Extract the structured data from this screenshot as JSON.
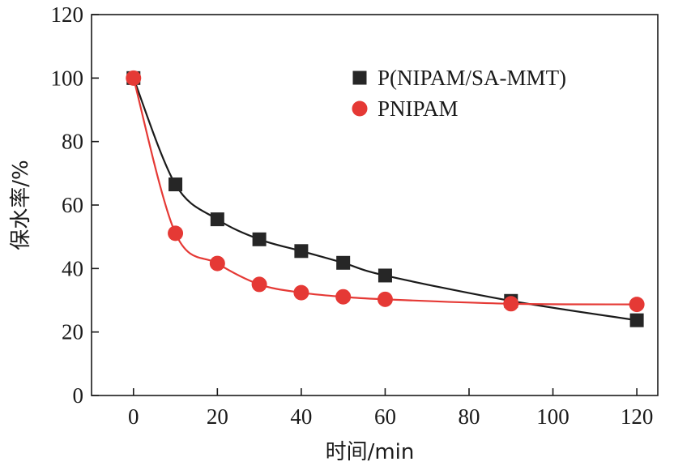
{
  "chart_data": {
    "type": "line",
    "title": "",
    "xlabel": "时间/min",
    "ylabel": "保水率/%",
    "xlim": [
      -10,
      125
    ],
    "ylim": [
      0,
      120
    ],
    "xticks": [
      0,
      20,
      40,
      60,
      80,
      100,
      120
    ],
    "yticks": [
      0,
      20,
      40,
      60,
      80,
      100,
      120
    ],
    "xtick_labels": [
      "0",
      "20",
      "40",
      "60",
      "80",
      "100",
      "120"
    ],
    "ytick_labels": [
      "0",
      "20",
      "40",
      "60",
      "80",
      "100",
      "120"
    ],
    "grid": false,
    "legend_position": "top-right",
    "series": [
      {
        "name": "P(NIPAM/SA-MMT)",
        "marker": "square",
        "marker_color": "#262626",
        "line_color": "#1a1a1a",
        "x": [
          0,
          10,
          20,
          30,
          40,
          50,
          60,
          90,
          120
        ],
        "y": [
          100,
          66.5,
          55.5,
          49.2,
          45.5,
          41.8,
          37.8,
          29.8,
          23.7
        ]
      },
      {
        "name": "PNIPAM",
        "marker": "circle",
        "marker_color": "#e53935",
        "line_color": "#e53935",
        "x": [
          0,
          10,
          20,
          30,
          40,
          50,
          60,
          90,
          120
        ],
        "y": [
          100,
          51.1,
          41.6,
          35.0,
          32.4,
          31.1,
          30.3,
          28.9,
          28.7
        ]
      }
    ]
  }
}
